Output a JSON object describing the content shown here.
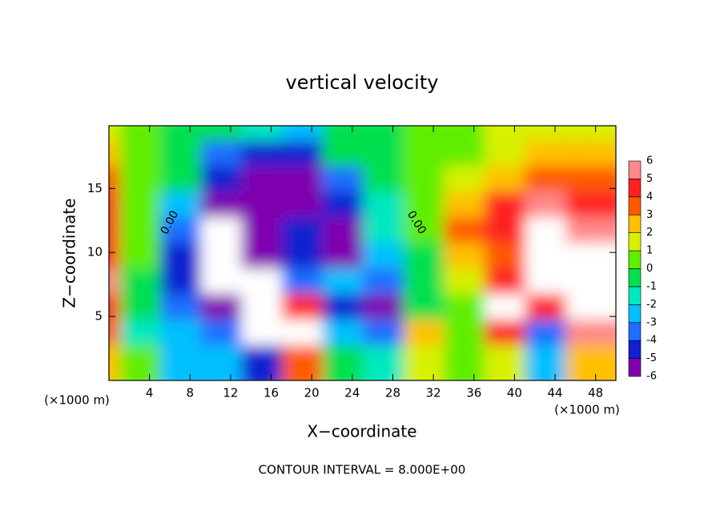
{
  "chart_data": {
    "type": "contour",
    "title": "vertical velocity",
    "xlabel": "X−coordinate",
    "ylabel": "Z−coordinate",
    "x_unit": "(×1000 m)",
    "x_unit_right": "(×1000 m)",
    "footer": "CONTOUR INTERVAL = 8.000E+00",
    "contour_labels": [
      "0.00",
      "0.00"
    ],
    "x": [
      0,
      4,
      8,
      12,
      16,
      20,
      24,
      28,
      32,
      36,
      40,
      44,
      48
    ],
    "y": [
      19,
      17,
      15,
      13,
      11,
      9,
      7,
      5,
      3,
      1
    ],
    "z": [
      [
        2,
        1,
        0,
        0,
        -1,
        -2,
        0,
        0,
        1,
        1,
        2,
        2,
        2
      ],
      [
        3,
        1,
        0,
        -3,
        -4,
        -4,
        0,
        0,
        1,
        1,
        2,
        3,
        3
      ],
      [
        4,
        1,
        0,
        -4,
        -5,
        -5,
        -3,
        0,
        1,
        2,
        3,
        4,
        4
      ],
      [
        5,
        1,
        -2,
        -6,
        -5,
        -5,
        -4,
        -1,
        1,
        3,
        5,
        6,
        5
      ],
      [
        5,
        1,
        -3,
        -7,
        -6,
        -4,
        -5,
        -1,
        1,
        4,
        5,
        7,
        6
      ],
      [
        5,
        1,
        -4,
        -7,
        -6,
        -4,
        -6,
        -2,
        0,
        3,
        4,
        7,
        7
      ],
      [
        6,
        0,
        -4,
        -7,
        -7,
        -3,
        -2,
        -3,
        0,
        2,
        5,
        7,
        7
      ],
      [
        5,
        0,
        -3,
        -5,
        -7,
        5,
        -4,
        -5,
        0,
        1,
        7,
        5,
        7
      ],
      [
        4,
        -1,
        -2,
        -3,
        -7,
        7,
        -2,
        -3,
        3,
        1,
        5,
        -3,
        6
      ],
      [
        3,
        1,
        -2,
        -2,
        -4,
        4,
        0,
        -1,
        2,
        1,
        2,
        -2,
        3
      ]
    ],
    "xlim": [
      0,
      50
    ],
    "ylim": [
      0,
      19.9
    ],
    "xticks": [
      4,
      8,
      12,
      16,
      20,
      24,
      28,
      32,
      36,
      40,
      44,
      48
    ],
    "yticks": [
      5,
      10,
      15
    ],
    "levels": [
      -6,
      -5,
      -4,
      -3,
      -2,
      -1,
      0,
      1,
      2,
      3,
      4,
      5,
      6
    ],
    "colors": [
      "#8000b0",
      "#1020d0",
      "#1e6eff",
      "#00c0ff",
      "#00e8c0",
      "#00e050",
      "#60ee00",
      "#d8f000",
      "#ffc000",
      "#ff5a00",
      "#ff2020",
      "#ff8888"
    ],
    "out_of_range_color": "#ffffff"
  }
}
